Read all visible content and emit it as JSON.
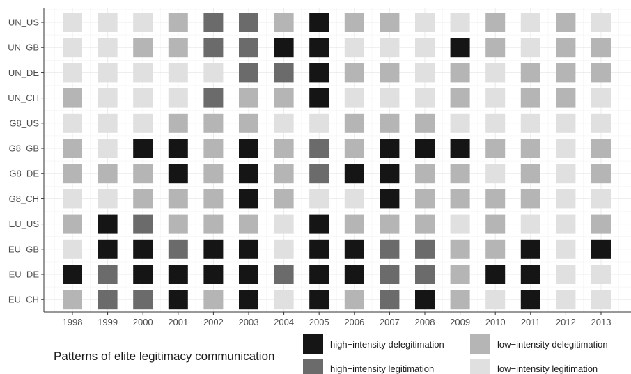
{
  "chart_data": {
    "type": "heatmap",
    "title": "",
    "xlabel": "",
    "ylabel": "",
    "x_categories": [
      "1998",
      "1999",
      "2000",
      "2001",
      "2002",
      "2003",
      "2004",
      "2005",
      "2006",
      "2007",
      "2008",
      "2009",
      "2010",
      "2011",
      "2012",
      "2013"
    ],
    "y_categories": [
      "UN_US",
      "UN_GB",
      "UN_DE",
      "UN_CH",
      "G8_US",
      "G8_GB",
      "G8_DE",
      "G8_CH",
      "EU_US",
      "EU_GB",
      "EU_DE",
      "EU_CH"
    ],
    "category_codes": {
      "HD": "high-intensity delegitimation",
      "HL": "high-intensity legitimation",
      "LD": "low-intensity delegitimation",
      "LL": "low-intensity legitimation"
    },
    "colors": {
      "HD": "#151515",
      "HL": "#6b6b6b",
      "LD": "#b5b5b5",
      "LL": "#e0e0e0"
    },
    "grid": true,
    "matrix": [
      [
        "LL",
        "LL",
        "LL",
        "LD",
        "HL",
        "HL",
        "LD",
        "HD",
        "LD",
        "LD",
        "LL",
        "LL",
        "LD",
        "LL",
        "LD",
        "LL"
      ],
      [
        "LL",
        "LL",
        "LD",
        "LD",
        "HL",
        "HL",
        "HD",
        "HD",
        "LL",
        "LL",
        "LL",
        "HD",
        "LD",
        "LL",
        "LD",
        "LD"
      ],
      [
        "LL",
        "LL",
        "LL",
        "LL",
        "LL",
        "HL",
        "HL",
        "HD",
        "LD",
        "LD",
        "LL",
        "LD",
        "LL",
        "LD",
        "LD",
        "LD"
      ],
      [
        "LD",
        "LL",
        "LL",
        "LL",
        "HL",
        "LD",
        "LD",
        "HD",
        "LL",
        "LL",
        "LL",
        "LD",
        "LL",
        "LD",
        "LD",
        "LL"
      ],
      [
        "LL",
        "LL",
        "LL",
        "LD",
        "LD",
        "LD",
        "LL",
        "LL",
        "LD",
        "LD",
        "LD",
        "LL",
        "LL",
        "LL",
        "LL",
        "LL"
      ],
      [
        "LD",
        "LL",
        "HD",
        "HD",
        "LD",
        "HD",
        "LD",
        "HL",
        "LD",
        "HD",
        "HD",
        "HD",
        "LD",
        "LD",
        "LL",
        "LD"
      ],
      [
        "LD",
        "LD",
        "LD",
        "HD",
        "LD",
        "HD",
        "LD",
        "HL",
        "HD",
        "HD",
        "LD",
        "LD",
        "LL",
        "LD",
        "LL",
        "LD"
      ],
      [
        "LL",
        "LL",
        "LD",
        "LD",
        "LD",
        "HD",
        "LD",
        "LL",
        "LL",
        "HD",
        "LD",
        "LD",
        "LD",
        "LD",
        "LL",
        "LL"
      ],
      [
        "LD",
        "HD",
        "HL",
        "LD",
        "LD",
        "LD",
        "LL",
        "HD",
        "LD",
        "LD",
        "LD",
        "LL",
        "LD",
        "LL",
        "LL",
        "LD"
      ],
      [
        "LL",
        "HD",
        "HD",
        "HL",
        "HD",
        "HD",
        "LL",
        "HD",
        "HD",
        "HL",
        "HL",
        "LD",
        "LD",
        "HD",
        "LL",
        "HD"
      ],
      [
        "HD",
        "HL",
        "HD",
        "HD",
        "HD",
        "HD",
        "HL",
        "HD",
        "HD",
        "HL",
        "HL",
        "LD",
        "HD",
        "HD",
        "LL",
        "LL"
      ],
      [
        "LD",
        "HL",
        "HL",
        "HD",
        "LD",
        "HD",
        "LL",
        "HD",
        "LD",
        "HL",
        "HD",
        "LD",
        "LL",
        "HD",
        "LL",
        "LL"
      ]
    ],
    "legend": {
      "title": "Patterns of elite legitimacy communication",
      "position": "bottom",
      "entries": [
        {
          "code": "HD",
          "label": "high−intensity delegitimation"
        },
        {
          "code": "LD",
          "label": "low−intensity delegitimation"
        },
        {
          "code": "HL",
          "label": "high−intensity legitimation"
        },
        {
          "code": "LL",
          "label": "low−intensity legitimation"
        }
      ]
    }
  }
}
